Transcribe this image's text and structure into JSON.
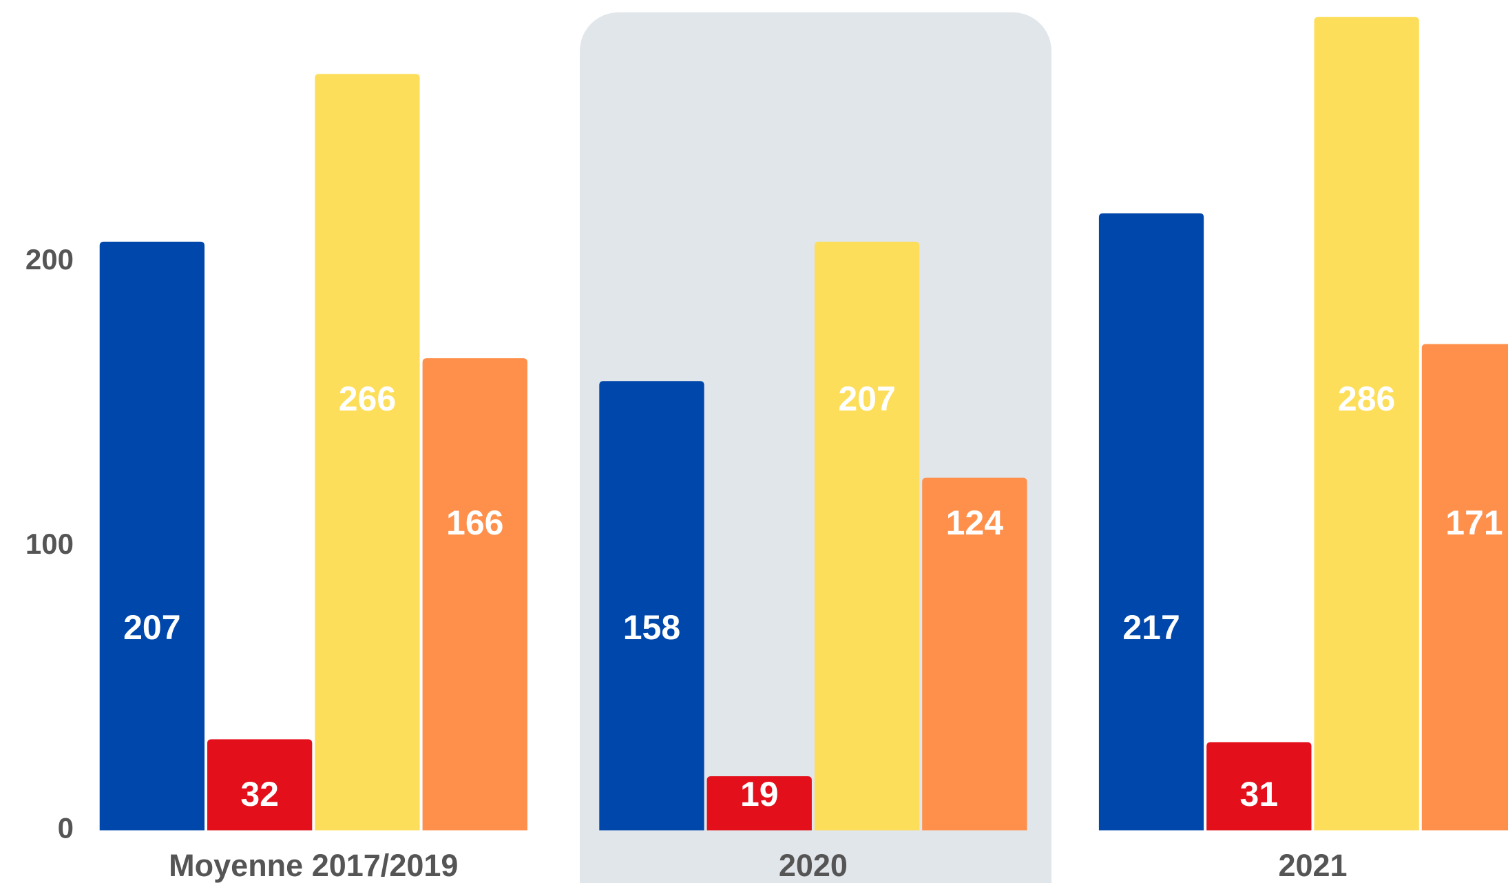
{
  "chart_data": {
    "type": "bar",
    "categories": [
      "Moyenne 2017/2019",
      "2020",
      "2021"
    ],
    "series": [
      {
        "color": "#0047ab",
        "values": [
          207,
          158,
          217
        ]
      },
      {
        "color": "#e30f1a",
        "values": [
          32,
          19,
          31
        ]
      },
      {
        "color": "#fdde5a",
        "values": [
          266,
          207,
          286
        ]
      },
      {
        "color": "#fe904b",
        "values": [
          166,
          124,
          171
        ]
      }
    ],
    "ylim": [
      0,
      292
    ],
    "yticks": [
      0,
      100,
      200
    ],
    "grid": false
  }
}
